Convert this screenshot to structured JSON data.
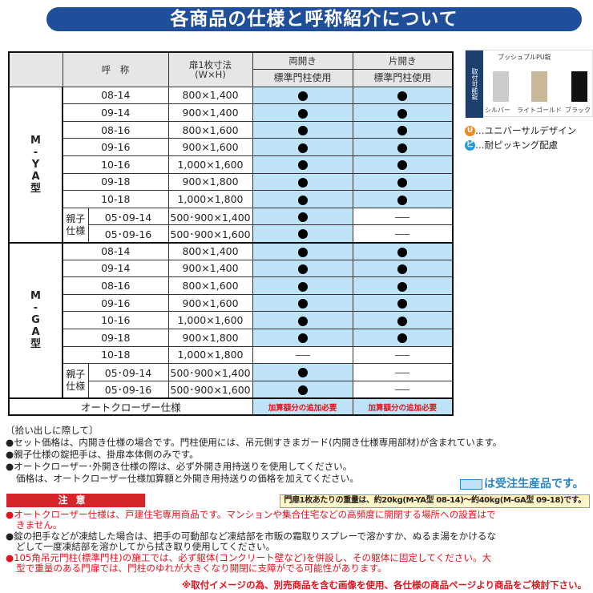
{
  "title": "各商品の仕様と呼称紹介について",
  "table": {
    "header": {
      "nominal": "呼　称",
      "size": "扉1枚寸法",
      "size_sub": "(W×H)",
      "double": "両開き",
      "single": "片開き",
      "double_sub": "標準門柱使用",
      "single_sub": "標準門柱使用"
    },
    "groups": [
      {
        "name": "M-YA型",
        "rows": [
          {
            "code": "08-14",
            "size": "800×1,400",
            "double": "●",
            "single": "●"
          },
          {
            "code": "09-14",
            "size": "900×1,400",
            "double": "●",
            "single": "●"
          },
          {
            "code": "08-16",
            "size": "800×1,600",
            "double": "●",
            "single": "●"
          },
          {
            "code": "09-16",
            "size": "900×1,600",
            "double": "●",
            "single": "●"
          },
          {
            "code": "10-16",
            "size": "1,000×1,600",
            "double": "●",
            "single": "●"
          },
          {
            "code": "09-18",
            "size": "900×1,800",
            "double": "●",
            "single": "●"
          },
          {
            "code": "10-18",
            "size": "1,000×1,800",
            "double": "●",
            "single": "●"
          },
          {
            "parent": "親子仕様",
            "code": "05･09-14",
            "size": "500･900×1,400",
            "double": "●",
            "single": "—"
          },
          {
            "parent": "親子仕様",
            "code": "05･09-16",
            "size": "500･900×1,600",
            "double": "●",
            "single": "—"
          }
        ]
      },
      {
        "name": "M-GA型",
        "rows": [
          {
            "code": "08-14",
            "size": "800×1,400",
            "double": "●",
            "single": "●"
          },
          {
            "code": "09-14",
            "size": "900×1,400",
            "double": "●",
            "single": "●"
          },
          {
            "code": "08-16",
            "size": "800×1,600",
            "double": "●",
            "single": "●"
          },
          {
            "code": "09-16",
            "size": "900×1,600",
            "double": "●",
            "single": "●"
          },
          {
            "code": "10-16",
            "size": "1,000×1,600",
            "double": "●",
            "single": "●"
          },
          {
            "code": "09-18",
            "size": "900×1,800",
            "double": "●",
            "single": "●"
          },
          {
            "code": "10-18",
            "size": "1,000×1,800",
            "double": "—",
            "single": "—"
          },
          {
            "parent": "親子仕様",
            "code": "05･09-14",
            "size": "500･900×1,400",
            "double": "●",
            "single": "—"
          },
          {
            "parent": "親子仕様",
            "code": "05･09-16",
            "size": "500･900×1,600",
            "double": "●",
            "single": "—"
          }
        ]
      }
    ],
    "autocloser": {
      "label": "オートクローザー仕様",
      "double": "加算額分の追加必要",
      "single": "加算額分の追加必要"
    }
  },
  "product_image": {
    "side_label": "取付可能錠",
    "caption": "プッシュプルPU錠",
    "colors": [
      "シルバー",
      "ライトゴールド",
      "ブラック"
    ]
  },
  "legend": [
    {
      "badge": "U",
      "text": "…ユニバーサルデザイン",
      "color": "#f08a1e"
    },
    {
      "badge": "ピ",
      "text": "…耐ピッキング配慮",
      "color": "#2a9ad8"
    }
  ],
  "notes": {
    "heading": "〔拾い出しに際して〕",
    "items": [
      "●セット価格は、内開き仕様の場合です。門柱使用には、吊元側すきまガード(内開き仕様専用部材)が含まれています。",
      "●親子仕様の錠把手は、掛扉本体側のみです。",
      "●オートクローザー･外開き仕様の際は、必ず外開き用持送りを使用してください。",
      "価格は、オートクローザー仕様加算額と外開き用持送りの価格を加えてください。"
    ]
  },
  "made_to_order": "は受注生産品です。",
  "caution": {
    "title": "注意",
    "weight": "門扉1枚あたりの重量は、約20kg(M-YA型 08-14)～約40kg(M-GA型 09-18)です。",
    "items": [
      {
        "text": "●オートクローザー仕様は、戸建住宅専用商品です。マンションや集合住宅などの高頻度に開閉する場所への設置はで",
        "cont": "きません。",
        "red": true
      },
      {
        "text": "●錠の把手などが凍結した場合は、把手の可動部など凍結部を市販の霜取りスプレーで溶かすか、ぬるま湯をかけるな",
        "cont": "どして一度凍結部を溶かしてから拭き取り使用してください。",
        "red": false
      },
      {
        "text": "●105角吊元門柱(標準門柱)の施工では、必ず躯体(コンクリート壁など)を併設し、その躯体に固定してください。大",
        "cont": "型で重量のある門扉では、門柱のゆれが大きくなり開閉に支障がでる可能性があります。",
        "red": true
      }
    ]
  },
  "footer": "※取付イメージの為、別売商品を含む画像を使用、各仕様の商品ページより商品をご検討下さい。",
  "colors": {
    "title_bar": "#1f4e9a",
    "made_to_order": "#bfe3f6",
    "caution": "#d6242b"
  }
}
